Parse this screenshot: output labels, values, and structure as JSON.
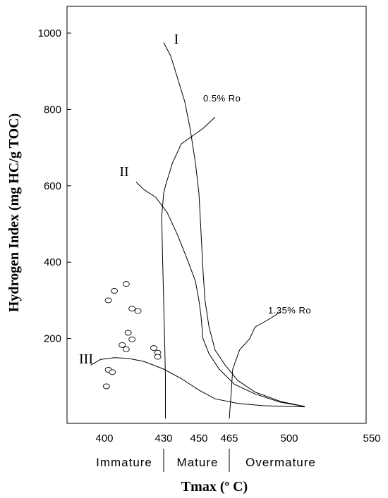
{
  "chart_data": {
    "type": "scatter",
    "xlabel": "Tmax (º C)",
    "ylabel": "Hydrogen Index (mg HC/g TOC)",
    "xlim": [
      380,
      530
    ],
    "ylim": [
      0,
      1100
    ],
    "x_ticks": [
      {
        "value": 400,
        "label": "400"
      },
      {
        "value": 430,
        "label": "430"
      },
      {
        "value": 450,
        "label": "450"
      },
      {
        "value": 465,
        "label": "465"
      },
      {
        "value": 500,
        "label": "500"
      },
      {
        "value": 550,
        "label": "550"
      }
    ],
    "y_ticks": [
      {
        "value": 200,
        "label": "200"
      },
      {
        "value": 400,
        "label": "400"
      },
      {
        "value": 600,
        "label": "600"
      },
      {
        "value": 800,
        "label": "800"
      },
      {
        "value": 1000,
        "label": "1000"
      }
    ],
    "kerogen_curves": [
      {
        "label": "I",
        "points": [
          [
            430,
            975
          ],
          [
            434,
            940
          ],
          [
            438,
            880
          ],
          [
            442,
            820
          ],
          [
            445,
            750
          ],
          [
            448,
            660
          ],
          [
            450,
            580
          ],
          [
            451,
            480
          ],
          [
            452,
            380
          ],
          [
            453,
            300
          ],
          [
            455,
            230
          ],
          [
            458,
            170
          ],
          [
            463,
            130
          ],
          [
            470,
            90
          ],
          [
            480,
            60
          ],
          [
            495,
            35
          ],
          [
            509,
            22
          ]
        ]
      },
      {
        "label": "II",
        "points": [
          [
            416,
            610
          ],
          [
            420,
            590
          ],
          [
            426,
            570
          ],
          [
            432,
            530
          ],
          [
            438,
            470
          ],
          [
            444,
            400
          ],
          [
            448,
            350
          ],
          [
            450,
            300
          ],
          [
            451,
            260
          ],
          [
            452,
            200
          ],
          [
            455,
            160
          ],
          [
            460,
            120
          ],
          [
            468,
            80
          ],
          [
            480,
            55
          ],
          [
            495,
            33
          ],
          [
            509,
            22
          ]
        ]
      },
      {
        "label": "III",
        "points": [
          [
            393,
            130
          ],
          [
            398,
            145
          ],
          [
            405,
            150
          ],
          [
            412,
            148
          ],
          [
            420,
            140
          ],
          [
            430,
            120
          ],
          [
            440,
            95
          ],
          [
            450,
            65
          ],
          [
            458,
            42
          ],
          [
            470,
            30
          ],
          [
            485,
            24
          ],
          [
            500,
            22
          ],
          [
            509,
            21
          ]
        ]
      }
    ],
    "ro_lines": [
      {
        "label": "0.5% Ro",
        "points": [
          [
            458,
            780
          ],
          [
            452,
            750
          ],
          [
            440,
            710
          ],
          [
            435,
            660
          ],
          [
            431,
            600
          ],
          [
            430,
            580
          ],
          [
            429,
            520
          ],
          [
            429.5,
            400
          ],
          [
            430,
            300
          ],
          [
            430.5,
            200
          ],
          [
            431,
            100
          ],
          [
            431,
            -10
          ]
        ]
      },
      {
        "label": "1.35% Ro",
        "points": [
          [
            495,
            270
          ],
          [
            488,
            250
          ],
          [
            480,
            230
          ],
          [
            477,
            200
          ],
          [
            471,
            170
          ],
          [
            467,
            120
          ],
          [
            466,
            50
          ],
          [
            465,
            -10
          ]
        ]
      }
    ],
    "zone_dividers": [
      430,
      465
    ],
    "zones": [
      "Immature",
      "Mature",
      "Overmature"
    ],
    "samples": [
      {
        "x": 401,
        "y": 75
      },
      {
        "x": 402,
        "y": 118
      },
      {
        "x": 404,
        "y": 112
      },
      {
        "x": 402,
        "y": 300
      },
      {
        "x": 405,
        "y": 325
      },
      {
        "x": 411,
        "y": 343
      },
      {
        "x": 409,
        "y": 183
      },
      {
        "x": 411,
        "y": 172
      },
      {
        "x": 412,
        "y": 215
      },
      {
        "x": 414,
        "y": 198
      },
      {
        "x": 414,
        "y": 278
      },
      {
        "x": 417,
        "y": 272
      },
      {
        "x": 425,
        "y": 175
      },
      {
        "x": 427,
        "y": 163
      },
      {
        "x": 427,
        "y": 152
      }
    ]
  }
}
